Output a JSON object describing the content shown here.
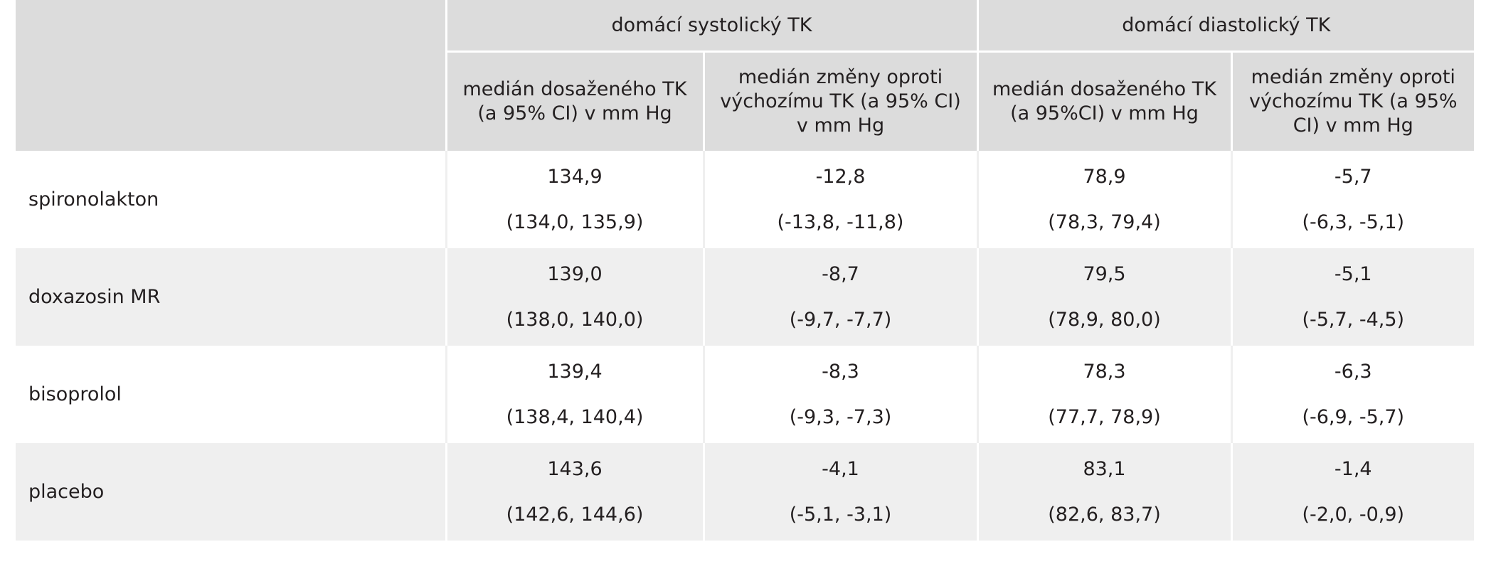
{
  "header": {
    "group_systolic": "domácí systolický TK",
    "group_diastolic": "domácí diastolický TK",
    "sys_achieved": "medián dosaženého TK (a 95% CI) v mm Hg",
    "sys_change": "medián změny oproti výchozímu TK (a 95% CI) v mm Hg",
    "dia_achieved": "medián dosaženého TK (a 95%CI) v mm Hg",
    "dia_change": "medián změny oproti výchozímu TK (a 95% CI) v mm Hg"
  },
  "rows": [
    {
      "drug": "spironolakton",
      "sys_achieved": "134,9",
      "sys_achieved_ci": "(134,0, 135,9)",
      "sys_change": "-12,8",
      "sys_change_ci": "(-13,8, -11,8)",
      "dia_achieved": "78,9",
      "dia_achieved_ci": "(78,3, 79,4)",
      "dia_change": "-5,7",
      "dia_change_ci": "(-6,3, -5,1)"
    },
    {
      "drug": "doxazosin MR",
      "sys_achieved": "139,0",
      "sys_achieved_ci": "(138,0, 140,0)",
      "sys_change": "-8,7",
      "sys_change_ci": "(-9,7, -7,7)",
      "dia_achieved": "79,5",
      "dia_achieved_ci": "(78,9, 80,0)",
      "dia_change": "-5,1",
      "dia_change_ci": "(-5,7, -4,5)"
    },
    {
      "drug": "bisoprolol",
      "sys_achieved": "139,4",
      "sys_achieved_ci": "(138,4, 140,4)",
      "sys_change": "-8,3",
      "sys_change_ci": "(-9,3, -7,3)",
      "dia_achieved": "78,3",
      "dia_achieved_ci": "(77,7, 78,9)",
      "dia_change": "-6,3",
      "dia_change_ci": "(-6,9, -5,7)"
    },
    {
      "drug": "placebo",
      "sys_achieved": "143,6",
      "sys_achieved_ci": "(142,6, 144,6)",
      "sys_change": "-4,1",
      "sys_change_ci": "(-5,1, -3,1)",
      "dia_achieved": "83,1",
      "dia_achieved_ci": "(82,6, 83,7)",
      "dia_change": "-1,4",
      "dia_change_ci": "(-2,0, -0,9)"
    }
  ]
}
